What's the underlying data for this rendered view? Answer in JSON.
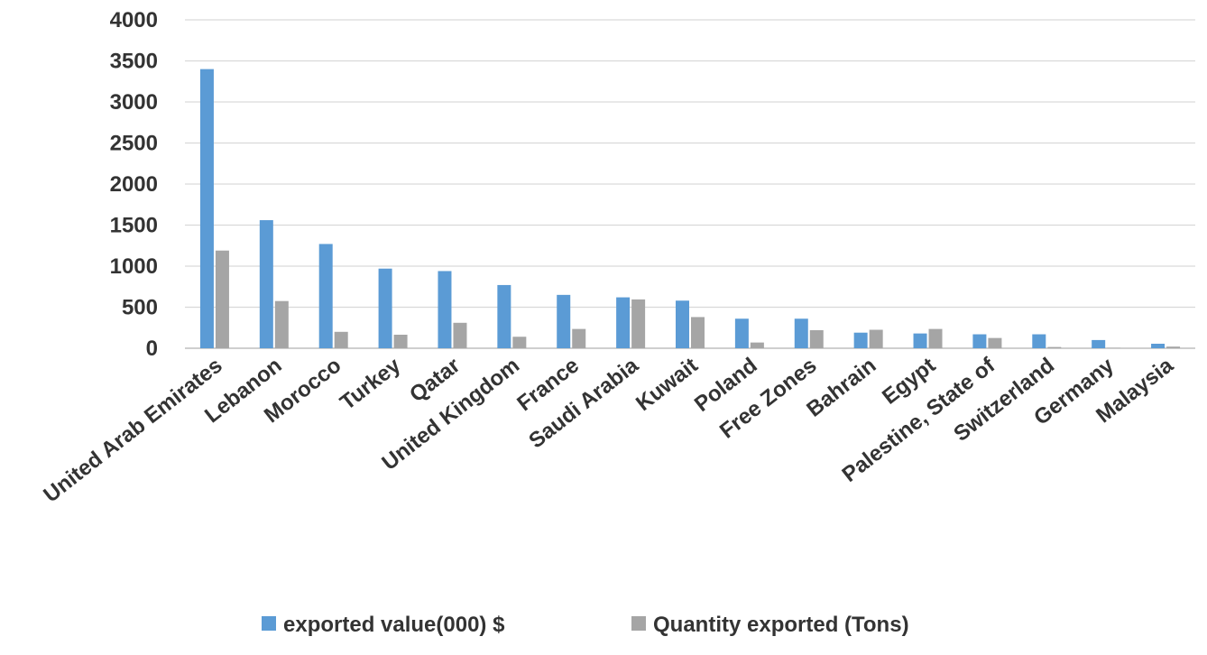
{
  "chart_data": {
    "type": "bar",
    "title": "",
    "xlabel": "",
    "ylabel": "",
    "ylim": [
      0,
      4000
    ],
    "yticks": [
      0,
      500,
      1000,
      1500,
      2000,
      2500,
      3000,
      3500,
      4000
    ],
    "grid": true,
    "legend_position": "bottom",
    "categories": [
      "United Arab Emirates",
      "Lebanon",
      "Morocco",
      "Turkey",
      "Qatar",
      "United Kingdom",
      "France",
      "Saudi Arabia",
      "Kuwait",
      "Poland",
      "Free Zones",
      "Bahrain",
      "Egypt",
      "Palestine, State of",
      "Switzerland",
      "Germany",
      "Malaysia"
    ],
    "series": [
      {
        "name": "exported value(000) $",
        "color": "#5b9bd5",
        "values": [
          3400,
          1560,
          1270,
          970,
          940,
          770,
          650,
          620,
          580,
          360,
          360,
          190,
          180,
          170,
          170,
          100,
          55
        ]
      },
      {
        "name": "Quantity exported (Tons)",
        "color": "#a5a5a5",
        "values": [
          1190,
          575,
          200,
          165,
          310,
          140,
          235,
          595,
          380,
          70,
          220,
          225,
          235,
          125,
          15,
          5,
          20
        ]
      }
    ]
  }
}
